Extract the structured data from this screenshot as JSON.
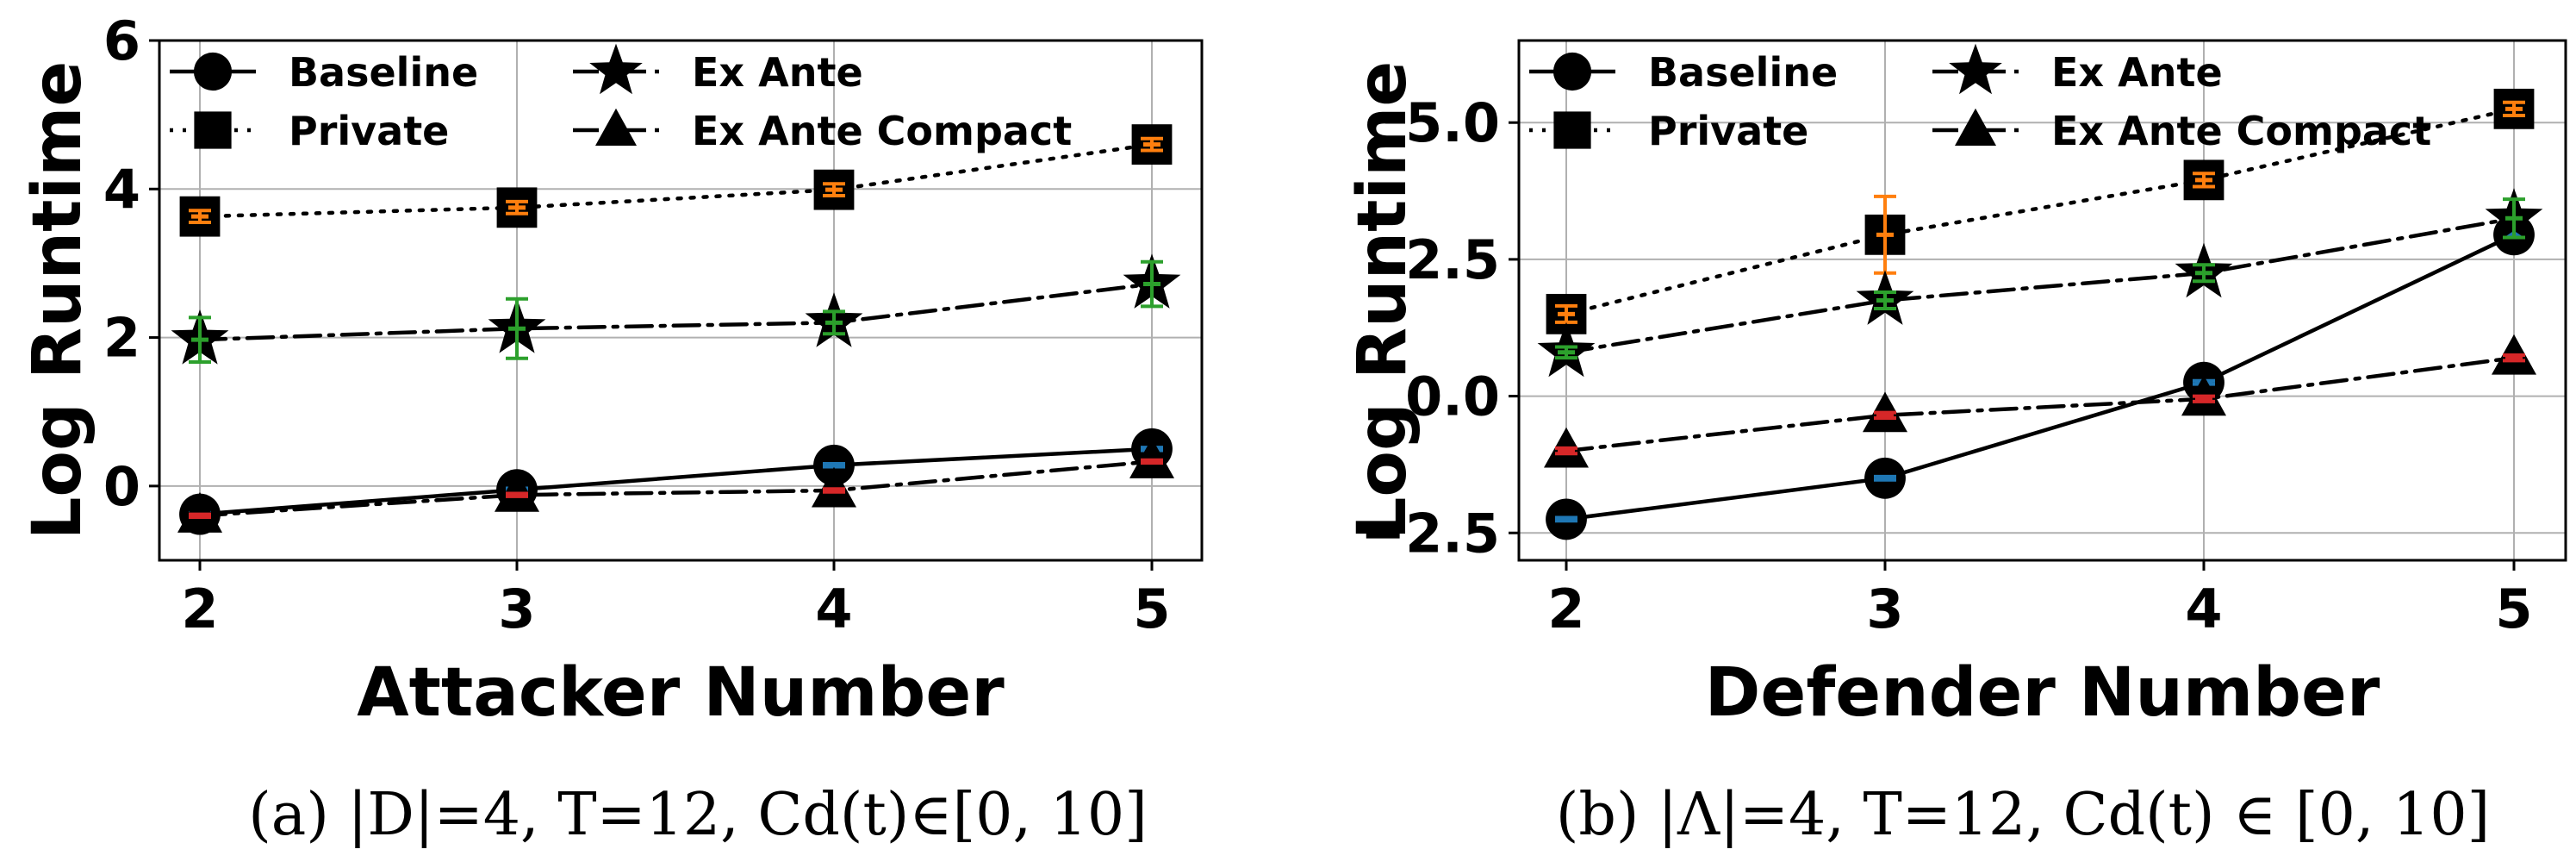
{
  "chart_data": [
    {
      "type": "line",
      "xlabel": "Attacker Number",
      "ylabel": "Log Runtime",
      "x": [
        2,
        3,
        4,
        5
      ],
      "xticks": [
        "2",
        "3",
        "4",
        "5"
      ],
      "ylim": [
        -1,
        6
      ],
      "yticks": [
        "0",
        "2",
        "4",
        "6"
      ],
      "yticks_values": [
        0,
        2,
        4,
        6
      ],
      "grid": true,
      "legend": "top-left",
      "caption": "(a) |D|=4, T=12, Cd(t)∈[0, 10]",
      "series": [
        {
          "name": "Baseline",
          "marker": "circle",
          "linestyle": "solid",
          "errcolor": "#1f77b4",
          "values": [
            -0.38,
            -0.05,
            0.28,
            0.5
          ],
          "errors": [
            0.02,
            0.02,
            0.02,
            0.02
          ]
        },
        {
          "name": "Private",
          "marker": "square",
          "linestyle": "dotted",
          "errcolor": "#ff7f0e",
          "values": [
            3.63,
            3.75,
            3.99,
            4.6
          ],
          "errors": [
            0.08,
            0.08,
            0.08,
            0.08
          ]
        },
        {
          "name": "Ex Ante",
          "marker": "star",
          "linestyle": "dashdot",
          "errcolor": "#2ca02c",
          "values": [
            1.97,
            2.12,
            2.2,
            2.72
          ],
          "errors": [
            0.3,
            0.4,
            0.15,
            0.3
          ]
        },
        {
          "name": "Ex Ante Compact",
          "marker": "triangle",
          "linestyle": "dashdot",
          "errcolor": "#d62728",
          "values": [
            -0.4,
            -0.12,
            -0.06,
            0.33
          ],
          "errors": [
            0.02,
            0.02,
            0.02,
            0.02
          ]
        }
      ]
    },
    {
      "type": "line",
      "xlabel": "Defender Number",
      "ylabel": "Log Runtime",
      "x": [
        2,
        3,
        4,
        5
      ],
      "xticks": [
        "2",
        "3",
        "4",
        "5"
      ],
      "ylim": [
        -3.0,
        6.5
      ],
      "yticks": [
        "−2.5",
        "0.0",
        "2.5",
        "5.0"
      ],
      "yticks_values": [
        -2.5,
        0.0,
        2.5,
        5.0
      ],
      "grid": true,
      "legend": "top-left",
      "caption": "(b) |Λ|=4, T=12, Cd(t) ∈ [0, 10]",
      "series": [
        {
          "name": "Baseline",
          "marker": "circle",
          "linestyle": "solid",
          "errcolor": "#1f77b4",
          "values": [
            -2.25,
            -1.5,
            0.25,
            2.95
          ],
          "errors": [
            0.03,
            0.03,
            0.03,
            0.03
          ]
        },
        {
          "name": "Private",
          "marker": "square",
          "linestyle": "dotted",
          "errcolor": "#ff7f0e",
          "values": [
            1.5,
            2.95,
            3.95,
            5.25
          ],
          "errors": [
            0.15,
            0.7,
            0.12,
            0.12
          ]
        },
        {
          "name": "Ex Ante",
          "marker": "star",
          "linestyle": "dashdot",
          "errcolor": "#2ca02c",
          "values": [
            0.8,
            1.75,
            2.25,
            3.25
          ],
          "errors": [
            0.1,
            0.15,
            0.15,
            0.35
          ]
        },
        {
          "name": "Ex Ante Compact",
          "marker": "triangle",
          "linestyle": "dashdot",
          "errcolor": "#d62728",
          "values": [
            -1.0,
            -0.35,
            -0.05,
            0.7
          ],
          "errors": [
            0.05,
            0.05,
            0.05,
            0.05
          ]
        }
      ]
    }
  ]
}
